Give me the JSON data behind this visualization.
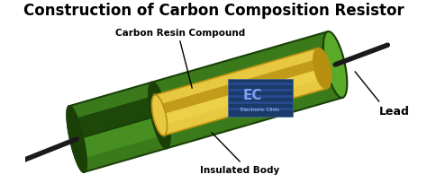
{
  "title": "Construction of Carbon Composition Resistor",
  "title_fontsize": 12,
  "title_fontweight": "bold",
  "title_color": "#000000",
  "bg_color": "#ffffff",
  "label_carbon_resin": "Carbon Resin Compound",
  "label_insulated_body": "Insulated Body",
  "label_lead": "Lead",
  "label_fontsize": 7.5,
  "label_fontweight": "bold",
  "outer_body_green": "#3a7a1a",
  "outer_body_dark": "#1a4008",
  "outer_body_light": "#5aaa2a",
  "inner_core_color": "#e8c840",
  "inner_core_dark": "#b89010",
  "inner_core_top": "#f0d850",
  "lead_color": "#1a1a1a",
  "cap_color": "#3a8020"
}
